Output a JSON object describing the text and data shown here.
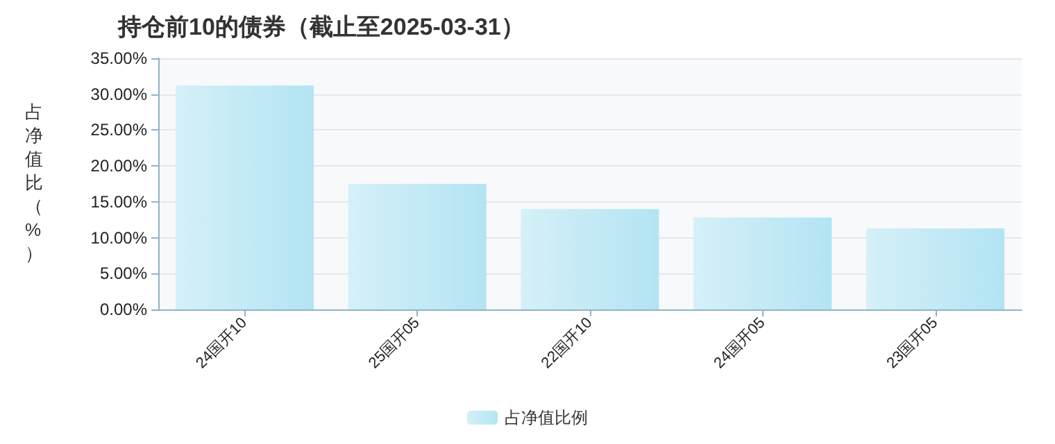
{
  "chart_data": {
    "type": "bar",
    "title": "持仓前10的债券（截止至2025-03-31）",
    "ylabel": "占净值比（%）",
    "categories": [
      "24国开10",
      "25国开05",
      "22国开10",
      "24国开05",
      "23国开05"
    ],
    "series": [
      {
        "name": "占净值比例",
        "color": "#b3e4f3",
        "values": [
          31.2,
          17.5,
          14.0,
          12.8,
          11.3
        ]
      }
    ],
    "ylim": [
      0,
      35
    ],
    "yticks": [
      {
        "value": 0,
        "label": "0.00%"
      },
      {
        "value": 5,
        "label": "5.00%"
      },
      {
        "value": 10,
        "label": "10.00%"
      },
      {
        "value": 15,
        "label": "15.00%"
      },
      {
        "value": 20,
        "label": "20.00%"
      },
      {
        "value": 25,
        "label": "25.00%"
      },
      {
        "value": 30,
        "label": "30.00%"
      },
      {
        "value": 35,
        "label": "35.00%"
      }
    ],
    "grid": "y",
    "legend": "bottom"
  }
}
